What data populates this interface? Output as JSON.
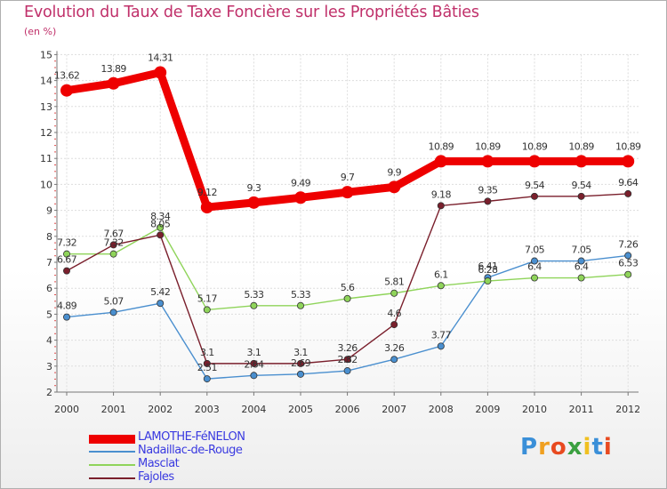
{
  "colors": {
    "title": "#c0306a",
    "axis": "#777777",
    "grid": "#dddddd",
    "label": "#333333",
    "legend_text": "#3a3ae0"
  },
  "chart_data": {
    "type": "line",
    "title": "Evolution du Taux de Taxe Foncière sur les Propriétés Bâties",
    "ylabel": "(en %)",
    "xlabel": "",
    "ylim": [
      2,
      15
    ],
    "yticks": [
      "2",
      "3",
      "4",
      "5",
      "6",
      "7",
      "8",
      "9",
      "10",
      "11",
      "12",
      "13",
      "14",
      "15"
    ],
    "categories": [
      "2000",
      "2001",
      "2002",
      "2003",
      "2004",
      "2005",
      "2006",
      "2007",
      "2008",
      "2009",
      "2010",
      "2011",
      "2012"
    ],
    "series": [
      {
        "name": "LAMOTHE-FéNELON",
        "color": "#ee0000",
        "values": [
          13.62,
          13.89,
          14.31,
          9.12,
          9.3,
          9.49,
          9.7,
          9.9,
          10.89,
          10.89,
          10.89,
          10.89,
          10.89
        ],
        "labels": [
          "13.62",
          "13.89",
          "14.31",
          "9.12",
          "9.3",
          "9.49",
          "9.7",
          "9.9",
          "10.89",
          "10.89",
          "10.89",
          "10.89",
          "10.89"
        ]
      },
      {
        "name": "Nadaillac-de-Rouge",
        "color": "#4a8fcf",
        "values": [
          4.89,
          5.07,
          5.42,
          2.51,
          2.64,
          2.69,
          2.82,
          3.26,
          3.77,
          6.41,
          7.05,
          7.05,
          7.26
        ],
        "labels": [
          "4.89",
          "5.07",
          "5.42",
          "2.51",
          "2.64",
          "2.69",
          "2.82",
          "3.26",
          "3.77",
          "6.41",
          "7.05",
          "7.05",
          "7.26"
        ]
      },
      {
        "name": "Masclat",
        "color": "#8fd45a",
        "values": [
          7.32,
          7.32,
          8.34,
          5.17,
          5.33,
          5.33,
          5.6,
          5.81,
          6.1,
          6.28,
          6.4,
          6.4,
          6.53
        ],
        "labels": [
          "7.32",
          "7.32",
          "8.34",
          "5.17",
          "5.33",
          "5.33",
          "5.6",
          "5.81",
          "6.1",
          "6.28",
          "6.4",
          "6.4",
          "6.53"
        ]
      },
      {
        "name": "Fajoles",
        "color": "#7a1f2c",
        "values": [
          6.67,
          7.67,
          8.05,
          3.1,
          3.1,
          3.1,
          3.26,
          4.6,
          9.18,
          9.35,
          9.54,
          9.54,
          9.64
        ],
        "labels": [
          "6.67",
          "7.67",
          "8.05",
          "3.1",
          "3.1",
          "3.1",
          "3.26",
          "4.6",
          "9.18",
          "9.35",
          "9.54",
          "9.54",
          "9.64"
        ]
      }
    ],
    "legend_position": "bottom-left"
  },
  "logo": {
    "letters": [
      "P",
      "r",
      "o",
      "x",
      "i",
      "t",
      "i"
    ],
    "colors": [
      "#3a8fd8",
      "#f0a020",
      "#e84a20",
      "#3aa040",
      "#f0c020",
      "#3a8fd8",
      "#e84a20"
    ]
  }
}
